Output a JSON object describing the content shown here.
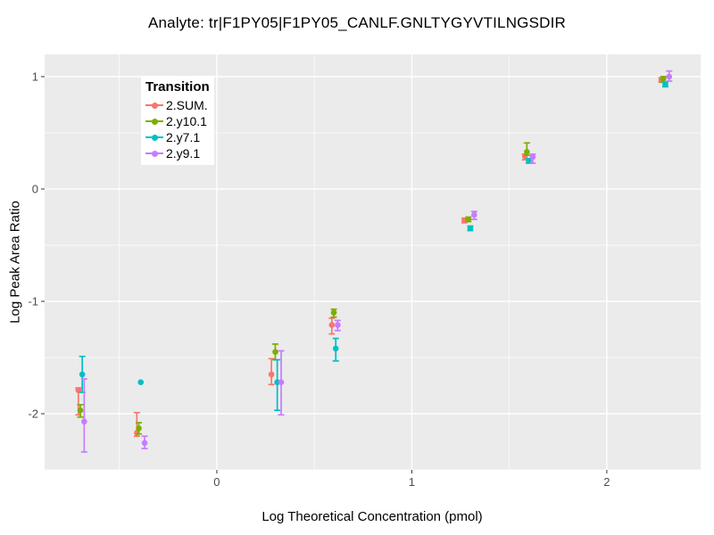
{
  "chart_data": {
    "type": "scatter",
    "title": "Analyte: tr|F1PY05|F1PY05_CANLF.GNLTYGYVTILNGSDIR",
    "xlabel": "Log Theoretical Concentration (pmol)",
    "ylabel": "Log Peak Area Ratio",
    "legend_title": "Transition",
    "legend_position": "inside-top-left",
    "panel_bg": "#EBEBEB",
    "grid_color": "#FFFFFF",
    "tick_color": "#333333",
    "tick_label_color": "#4D4D4D",
    "xlim": [
      -0.883,
      2.481
    ],
    "ylim": [
      -2.5,
      1.198
    ],
    "x_ticks": [
      0,
      1,
      2
    ],
    "y_ticks": [
      1,
      0,
      -1,
      -2
    ],
    "x_minor": [
      -0.5,
      0.5,
      1.5
    ],
    "y_minor": [
      0.5,
      -0.5,
      -1.5,
      -2.5
    ],
    "series": [
      {
        "name": "2.SUM.",
        "color": "#F8766D",
        "points": [
          {
            "x": -0.71,
            "y": -1.79,
            "ymin": -2.01,
            "ymax": -1.77
          },
          {
            "x": -0.41,
            "y": -2.17,
            "ymin": -2.2,
            "ymax": -1.99
          },
          {
            "x": 0.28,
            "y": -1.65,
            "ymin": -1.74,
            "ymax": -1.51
          },
          {
            "x": 0.59,
            "y": -1.21,
            "ymin": -1.29,
            "ymax": -1.15
          },
          {
            "x": 1.27,
            "y": -0.28,
            "ymin": -0.3,
            "ymax": -0.26
          },
          {
            "x": 1.58,
            "y": 0.29,
            "ymin": 0.26,
            "ymax": 0.31
          },
          {
            "x": 2.28,
            "y": 0.97,
            "ymin": 0.95,
            "ymax": 0.99
          }
        ]
      },
      {
        "name": "2.y10.1",
        "color": "#7CAE00",
        "points": [
          {
            "x": -0.7,
            "y": -1.97,
            "ymin": -2.03,
            "ymax": -1.92
          },
          {
            "x": -0.4,
            "y": -2.13,
            "ymin": -2.18,
            "ymax": -2.08
          },
          {
            "x": 0.3,
            "y": -1.45,
            "ymin": -1.52,
            "ymax": -1.38
          },
          {
            "x": 0.6,
            "y": -1.1,
            "ymin": -1.14,
            "ymax": -1.07
          },
          {
            "x": 1.29,
            "y": -0.27,
            "ymin": -0.29,
            "ymax": -0.25
          },
          {
            "x": 1.59,
            "y": 0.33,
            "ymin": 0.3,
            "ymax": 0.41
          },
          {
            "x": 2.29,
            "y": 0.98,
            "ymin": 0.95,
            "ymax": 1.0
          }
        ]
      },
      {
        "name": "2.y7.1",
        "color": "#00BFC4",
        "points": [
          {
            "x": -0.69,
            "y": -1.65,
            "ymin": -1.81,
            "ymax": -1.49
          },
          {
            "x": -0.39,
            "y": -1.72,
            "ymin": -1.72,
            "ymax": -1.72
          },
          {
            "x": 0.31,
            "y": -1.72,
            "ymin": -1.97,
            "ymax": -1.52
          },
          {
            "x": 0.61,
            "y": -1.42,
            "ymin": -1.53,
            "ymax": -1.33
          },
          {
            "x": 1.3,
            "y": -0.35,
            "ymin": -0.37,
            "ymax": -0.33
          },
          {
            "x": 1.6,
            "y": 0.25,
            "ymin": 0.23,
            "ymax": 0.27
          },
          {
            "x": 2.3,
            "y": 0.93,
            "ymin": 0.91,
            "ymax": 0.95
          }
        ]
      },
      {
        "name": "2.y9.1",
        "color": "#C77CFF",
        "points": [
          {
            "x": -0.68,
            "y": -2.07,
            "ymin": -2.34,
            "ymax": -1.69
          },
          {
            "x": -0.37,
            "y": -2.26,
            "ymin": -2.31,
            "ymax": -2.2
          },
          {
            "x": 0.33,
            "y": -1.72,
            "ymin": -2.01,
            "ymax": -1.44
          },
          {
            "x": 0.62,
            "y": -1.21,
            "ymin": -1.26,
            "ymax": -1.17
          },
          {
            "x": 1.32,
            "y": -0.23,
            "ymin": -0.27,
            "ymax": -0.2
          },
          {
            "x": 1.62,
            "y": 0.285,
            "ymin": 0.23,
            "ymax": 0.31
          },
          {
            "x": 2.32,
            "y": 1.0,
            "ymin": 0.96,
            "ymax": 1.05
          }
        ]
      }
    ]
  }
}
